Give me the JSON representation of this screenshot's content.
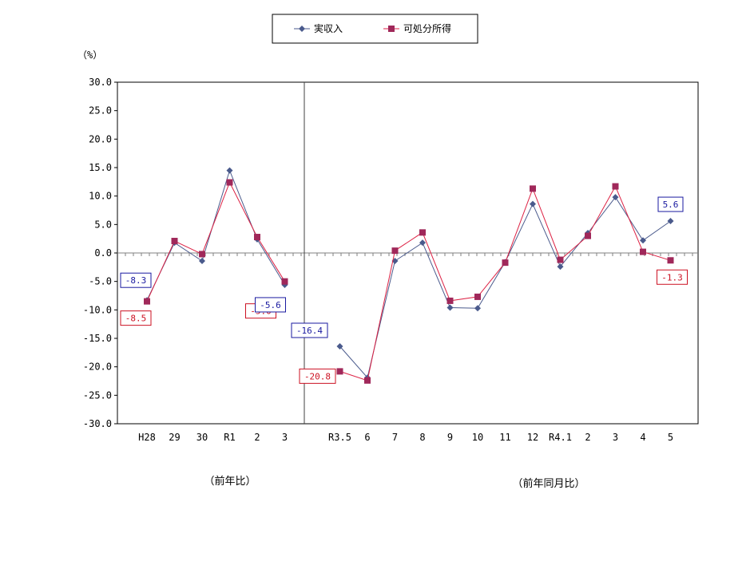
{
  "chart_data": {
    "type": "line",
    "unit_label": "（%）",
    "ylim": [
      -30,
      30
    ],
    "y_ticks": [
      "30.0",
      "25.0",
      "20.0",
      "15.0",
      "10.0",
      "5.0",
      "0.0",
      "-5.0",
      "-10.0",
      "-15.0",
      "-20.0",
      "-25.0",
      "-30.0"
    ],
    "grid": false,
    "legend_position": "top-center",
    "categories": [
      "H28",
      "29",
      "30",
      "R1",
      "2",
      "3",
      "R3.5",
      "6",
      "7",
      "8",
      "9",
      "10",
      "11",
      "12",
      "R4.1",
      "2",
      "3",
      "4",
      "5"
    ],
    "groups": [
      {
        "label": "（前年比）",
        "range": [
          0,
          5
        ]
      },
      {
        "label": "（前年同月比）",
        "range": [
          6,
          18
        ]
      }
    ],
    "series": [
      {
        "name": "実収入",
        "color": "#4a5a8c",
        "marker": "diamond",
        "segments": [
          [
            -8.3,
            1.8,
            -1.4,
            14.5,
            2.4,
            -5.6
          ],
          [
            -16.4,
            -21.9,
            -1.4,
            1.8,
            -9.6,
            -9.7,
            -1.6,
            8.6,
            -2.4,
            3.5,
            9.8,
            2.2,
            5.6
          ]
        ]
      },
      {
        "name": "可処分所得",
        "color": "#dd2244",
        "marker_color": "#a0285a",
        "marker": "square",
        "segments": [
          [
            -8.5,
            2.1,
            -0.2,
            12.4,
            2.8,
            -5.0
          ],
          [
            -20.8,
            -22.4,
            0.4,
            3.6,
            -8.4,
            -7.7,
            -1.7,
            11.3,
            -1.2,
            3.0,
            11.7,
            0.2,
            -1.3
          ]
        ]
      }
    ],
    "annotations": [
      {
        "text": "-8.3",
        "series": 0,
        "group": 0,
        "index": 0,
        "color": "#1a1aa0"
      },
      {
        "text": "-8.5",
        "series": 1,
        "group": 0,
        "index": 0,
        "color": "#cc1122"
      },
      {
        "text": "-5.0",
        "series": 1,
        "group": 0,
        "index": 5,
        "color": "#cc1122"
      },
      {
        "text": "-5.6",
        "series": 0,
        "group": 0,
        "index": 5,
        "color": "#1a1aa0"
      },
      {
        "text": "-16.4",
        "series": 0,
        "group": 1,
        "index": 0,
        "color": "#1a1aa0"
      },
      {
        "text": "-20.8",
        "series": 1,
        "group": 1,
        "index": 0,
        "color": "#cc1122"
      },
      {
        "text": "5.6",
        "series": 0,
        "group": 1,
        "index": 12,
        "color": "#1a1aa0"
      },
      {
        "text": "-1.3",
        "series": 1,
        "group": 1,
        "index": 12,
        "color": "#cc1122"
      }
    ]
  }
}
